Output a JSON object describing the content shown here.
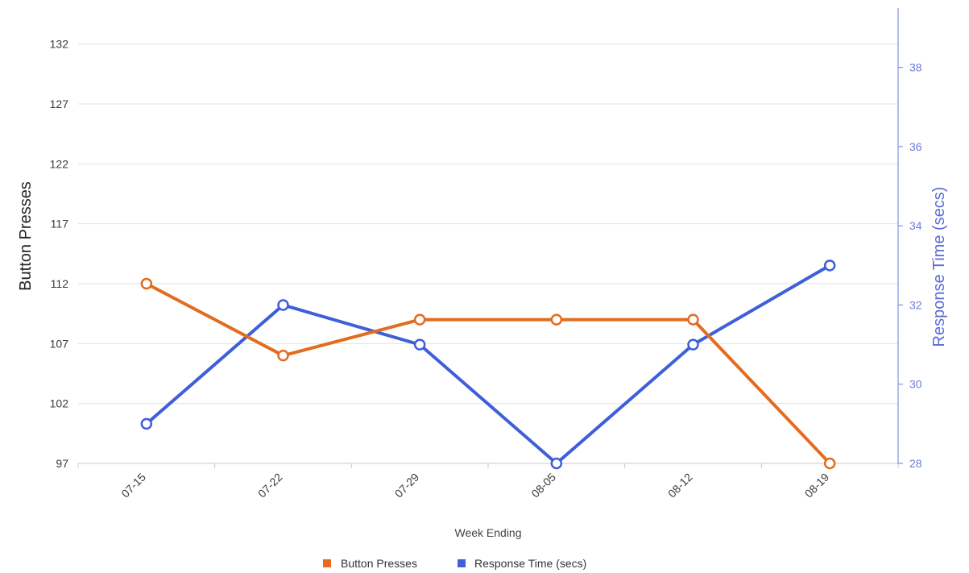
{
  "colors": {
    "button_presses": "#E36C1F",
    "response_time": "#3F5FD8",
    "right_axis": "#6D7AD6"
  },
  "chart_data": {
    "type": "line",
    "categories": [
      "07-15",
      "07-22",
      "07-29",
      "08-05",
      "08-12",
      "08-19"
    ],
    "xlabel": "Week Ending",
    "ylabel": "Button Presses",
    "y2label": "Response Time (secs)",
    "ylim": [
      97,
      135
    ],
    "y_ticks": [
      97,
      102,
      107,
      112,
      117,
      122,
      127,
      132
    ],
    "y2lim": [
      28,
      39.5
    ],
    "y2_ticks": [
      28,
      30,
      32,
      34,
      36,
      38
    ],
    "grid": true,
    "legend_position": "bottom-center",
    "series": [
      {
        "name": "Button Presses",
        "axis": "left",
        "values": [
          112,
          106,
          109,
          109,
          109,
          97
        ]
      },
      {
        "name": "Response Time (secs)",
        "axis": "right",
        "values": [
          29,
          32,
          31,
          28,
          31,
          33
        ]
      }
    ]
  }
}
